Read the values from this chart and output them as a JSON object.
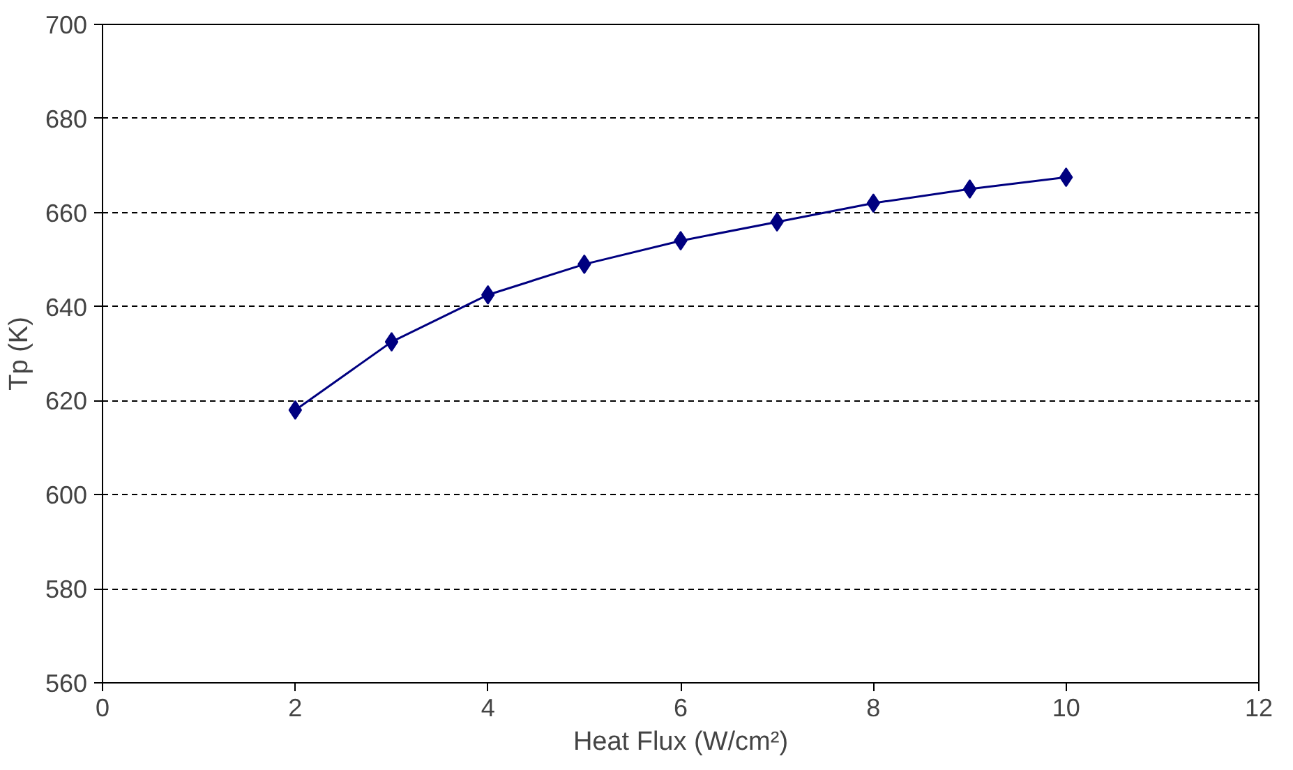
{
  "chart_data": {
    "type": "line",
    "xlabel": "Heat Flux (W/cm²)",
    "ylabel": "Tp (K)",
    "x": [
      2,
      3,
      4,
      5,
      6,
      7,
      8,
      9,
      10
    ],
    "series": [
      {
        "color": "#000080",
        "values": [
          618,
          632.5,
          642.5,
          649,
          654,
          658,
          662,
          665,
          667.5
        ]
      }
    ],
    "xlim": [
      0,
      12
    ],
    "xticks": [
      0,
      2,
      4,
      6,
      8,
      10,
      12
    ],
    "ylim": [
      560,
      700
    ],
    "yticks": [
      560,
      580,
      600,
      620,
      640,
      660,
      680,
      700
    ],
    "grid": "y",
    "marker": "diamond",
    "line_style": "solid"
  }
}
